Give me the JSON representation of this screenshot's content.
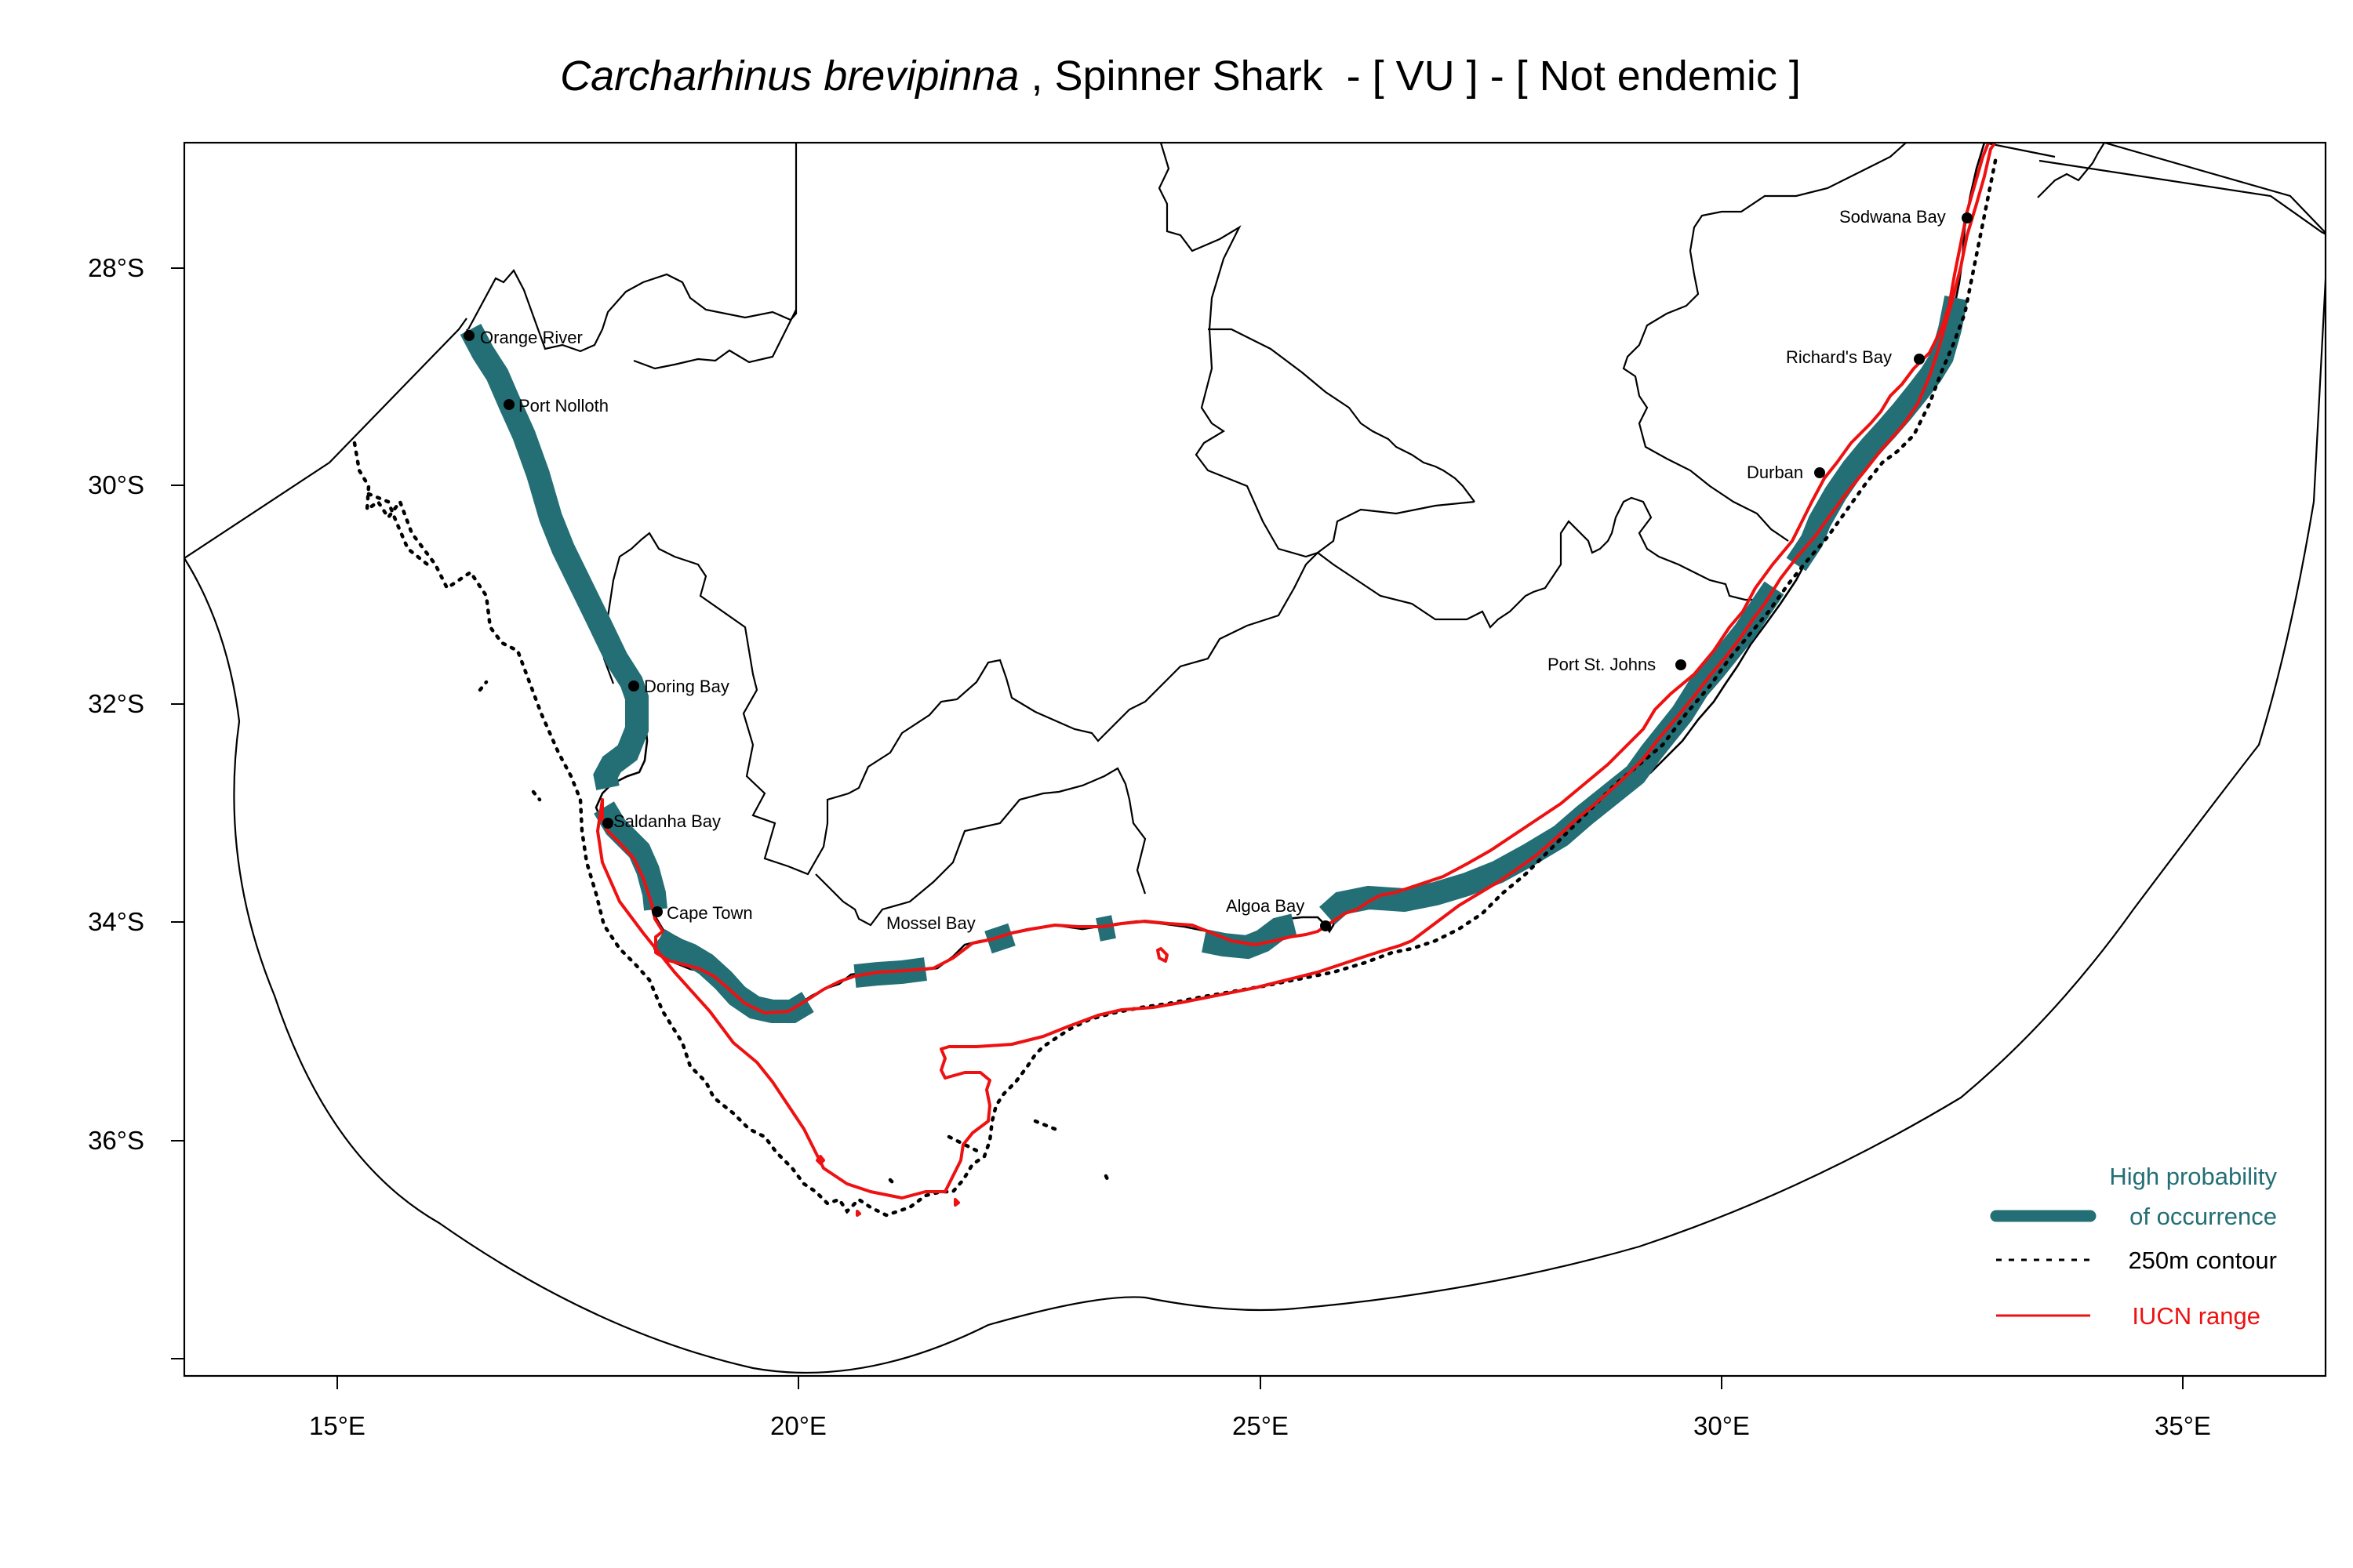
{
  "title": {
    "species": "Carcharhinus brevipinna",
    "rest": " , Spinner Shark  - [ VU ] - [ Not endemic ]"
  },
  "colors": {
    "occurrence": "#236f75",
    "iucn": "#ee1111",
    "outline": "#000000",
    "background": "#ffffff"
  },
  "axes": {
    "x_ticks": [
      "15°E",
      "20°E",
      "25°E",
      "30°E",
      "35°E"
    ],
    "y_ticks": [
      "28°S",
      "30°S",
      "32°S",
      "34°S",
      "36°S"
    ]
  },
  "places": [
    {
      "name": "Orange River"
    },
    {
      "name": "Port Nolloth"
    },
    {
      "name": "Doring Bay"
    },
    {
      "name": "Saldanha Bay"
    },
    {
      "name": "Cape Town"
    },
    {
      "name": "Mossel Bay"
    },
    {
      "name": "Algoa Bay"
    },
    {
      "name": "Port St. Johns"
    },
    {
      "name": "Durban"
    },
    {
      "name": "Richard's Bay"
    },
    {
      "name": "Sodwana Bay"
    }
  ],
  "legend": {
    "occurrence_line1": "High probability",
    "occurrence_line2": "of occurrence",
    "contour": "250m contour",
    "iucn": "IUCN range"
  }
}
